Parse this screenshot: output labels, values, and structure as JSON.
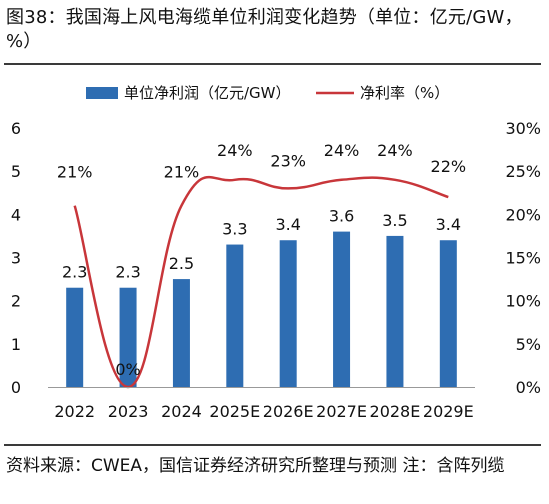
{
  "title": "图38：我国海上风电海缆单位利润变化趋势（单位：亿元/GW，%）",
  "source": "资料来源：CWEA，国信证券经济研究所整理与预测  注：含阵列缆",
  "colors": {
    "bar": "#2e6db2",
    "line": "#c8363a",
    "text": "#111111",
    "axis": "#999999"
  },
  "chart_data": {
    "type": "bar",
    "categories": [
      "2022",
      "2023",
      "2024",
      "2025E",
      "2026E",
      "2027E",
      "2028E",
      "2029E"
    ],
    "series": [
      {
        "name": "单位净利润（亿元/GW）",
        "type": "bar",
        "axis": "left",
        "values": [
          2.3,
          2.3,
          2.5,
          3.3,
          3.4,
          3.6,
          3.5,
          3.4
        ],
        "labels": [
          "2.3",
          "2.3",
          "2.5",
          "3.3",
          "3.4",
          "3.6",
          "3.5",
          "3.4"
        ]
      },
      {
        "name": "净利率（%）",
        "type": "line",
        "axis": "right",
        "values": [
          21,
          0,
          21,
          24,
          23,
          24,
          24,
          22
        ],
        "labels": [
          "21%",
          "0%",
          "21%",
          "24%",
          "23%",
          "24%",
          "24%",
          "22%"
        ]
      }
    ],
    "y_left": {
      "min": 0,
      "max": 6,
      "ticks": [
        "0",
        "1",
        "2",
        "3",
        "4",
        "5",
        "6"
      ]
    },
    "y_right": {
      "min": 0,
      "max": 30,
      "ticks": [
        "0%",
        "5%",
        "10%",
        "15%",
        "20%",
        "25%",
        "30%"
      ]
    },
    "legend": "top",
    "grid": false
  }
}
